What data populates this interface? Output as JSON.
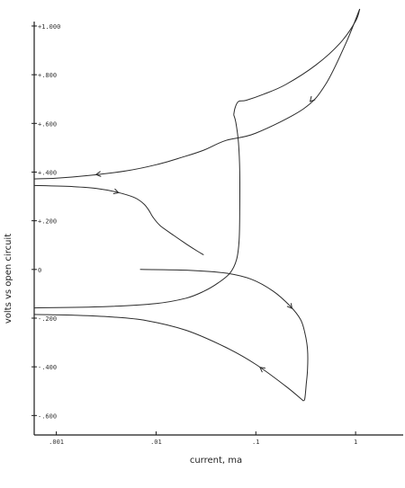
{
  "chart_data": {
    "type": "line",
    "xlabel": "current, ma",
    "ylabel": "volts vs open circuit",
    "x_scale": "log",
    "xlim": [
      0.0006,
      3.0
    ],
    "ylim": [
      -0.68,
      1.07
    ],
    "x_ticks": [
      {
        "value": 0.001,
        "label": ".001"
      },
      {
        "value": 0.01,
        "label": ".01"
      },
      {
        "value": 0.1,
        "label": ".1"
      },
      {
        "value": 1,
        "label": "1"
      }
    ],
    "y_ticks": [
      {
        "value": 1.0,
        "label": "+1.000"
      },
      {
        "value": 0.8,
        "label": "+.800"
      },
      {
        "value": 0.6,
        "label": "+.600"
      },
      {
        "value": 0.4,
        "label": "+.400"
      },
      {
        "value": 0.2,
        "label": "+.200"
      },
      {
        "value": 0.0,
        "label": "0"
      },
      {
        "value": -0.2,
        "label": "-.200"
      },
      {
        "value": -0.4,
        "label": "-.400"
      },
      {
        "value": -0.6,
        "label": "-.600"
      }
    ],
    "grid": false,
    "series": [
      {
        "points": [
          [
            0.0069,
            0.0
          ],
          [
            0.02,
            -0.003
          ],
          [
            0.05,
            -0.015
          ],
          [
            0.09,
            -0.04
          ],
          [
            0.15,
            -0.09
          ],
          [
            0.22,
            -0.15
          ],
          [
            0.28,
            -0.205
          ],
          [
            0.31,
            -0.26
          ],
          [
            0.33,
            -0.33
          ],
          [
            0.33,
            -0.41
          ],
          [
            0.32,
            -0.47
          ],
          [
            0.31,
            -0.53
          ],
          [
            0.3,
            -0.54
          ]
        ],
        "arrows_at": [
          0.23
        ]
      },
      {
        "points": [
          [
            0.3,
            -0.54
          ],
          [
            0.2,
            -0.48
          ],
          [
            0.1,
            -0.39
          ],
          [
            0.05,
            -0.32
          ],
          [
            0.02,
            -0.25
          ],
          [
            0.008,
            -0.21
          ],
          [
            0.0035,
            -0.195
          ],
          [
            0.0015,
            -0.188
          ],
          [
            0.0006,
            -0.185
          ]
        ],
        "arrows_at": [
          0.11
        ]
      },
      {
        "points": [
          [
            0.0006,
            -0.158
          ],
          [
            0.003,
            -0.153
          ],
          [
            0.01,
            -0.14
          ],
          [
            0.02,
            -0.118
          ],
          [
            0.03,
            -0.09
          ],
          [
            0.042,
            -0.055
          ],
          [
            0.055,
            -0.015
          ],
          [
            0.064,
            0.04
          ],
          [
            0.068,
            0.12
          ],
          [
            0.069,
            0.25
          ],
          [
            0.069,
            0.4
          ],
          [
            0.067,
            0.52
          ],
          [
            0.063,
            0.605
          ],
          [
            0.06,
            0.635
          ]
        ],
        "arrows_at": [
          0.61
        ]
      },
      {
        "points": [
          [
            0.06,
            0.635
          ],
          [
            0.062,
            0.665
          ],
          [
            0.067,
            0.69
          ],
          [
            0.08,
            0.695
          ],
          [
            0.12,
            0.72
          ],
          [
            0.2,
            0.76
          ],
          [
            0.4,
            0.84
          ],
          [
            0.7,
            0.93
          ],
          [
            1.0,
            1.02
          ],
          [
            1.1,
            1.07
          ]
        ],
        "arrows_at": []
      },
      {
        "points": [
          [
            1.1,
            1.07
          ],
          [
            0.8,
            0.93
          ],
          [
            0.5,
            0.76
          ],
          [
            0.3,
            0.66
          ],
          [
            0.1,
            0.56
          ],
          [
            0.05,
            0.53
          ],
          [
            0.03,
            0.49
          ],
          [
            0.018,
            0.46
          ],
          [
            0.01,
            0.43
          ],
          [
            0.005,
            0.405
          ],
          [
            0.002,
            0.385
          ],
          [
            0.001,
            0.375
          ],
          [
            0.0006,
            0.372
          ]
        ],
        "arrows_at": [
          0.35,
          0.0025
        ]
      },
      {
        "points": [
          [
            0.0006,
            0.345
          ],
          [
            0.0015,
            0.34
          ],
          [
            0.0025,
            0.333
          ],
          [
            0.004,
            0.318
          ],
          [
            0.006,
            0.296
          ],
          [
            0.0075,
            0.27
          ],
          [
            0.0085,
            0.242
          ],
          [
            0.0093,
            0.215
          ],
          [
            0.011,
            0.18
          ],
          [
            0.015,
            0.14
          ],
          [
            0.02,
            0.105
          ],
          [
            0.026,
            0.075
          ],
          [
            0.03,
            0.06
          ]
        ],
        "arrows_at": [
          0.0042
        ]
      }
    ]
  }
}
